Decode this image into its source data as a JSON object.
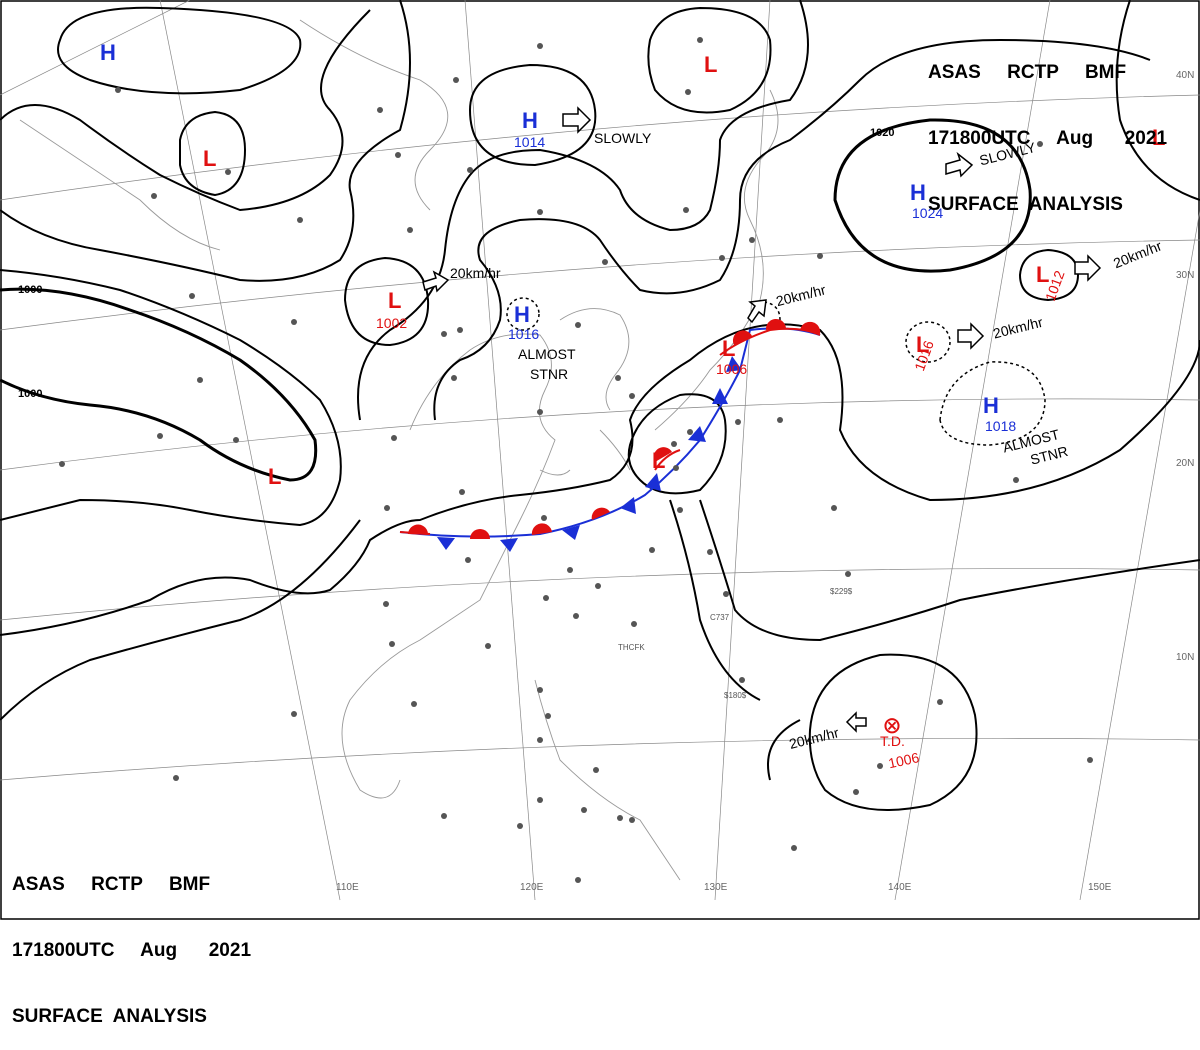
{
  "header": {
    "line1": "ASAS     RCTP     BMF",
    "line2": "171800UTC     Aug      2021",
    "line3": "SURFACE  ANALYSIS"
  },
  "isobar_labels": [
    "1000",
    "1000",
    "1020"
  ],
  "pressure_systems": [
    {
      "id": "h-nw",
      "type": "H",
      "value": ""
    },
    {
      "id": "h-1014",
      "type": "H",
      "value": "1014"
    },
    {
      "id": "h-1016",
      "type": "H",
      "value": "1016"
    },
    {
      "id": "h-1024",
      "type": "H",
      "value": "1024"
    },
    {
      "id": "h-1018",
      "type": "H",
      "value": "1018"
    },
    {
      "id": "l-west",
      "type": "L",
      "value": ""
    },
    {
      "id": "l-1002",
      "type": "L",
      "value": "1002"
    },
    {
      "id": "l-north",
      "type": "L",
      "value": ""
    },
    {
      "id": "l-1006",
      "type": "L",
      "value": "1006"
    },
    {
      "id": "l-1016",
      "type": "L",
      "value": "1016"
    },
    {
      "id": "l-1012",
      "type": "L",
      "value": "1012"
    },
    {
      "id": "l-ne",
      "type": "L",
      "value": ""
    },
    {
      "id": "l-sw",
      "type": "L",
      "value": ""
    },
    {
      "id": "l-tw",
      "type": "L",
      "value": ""
    }
  ],
  "motions": {
    "slowly_1": "SLOWLY",
    "slowly_2": "SLOWLY",
    "speed_1": "20km/hr",
    "speed_2": "20km/hr",
    "speed_3": "20km/hr",
    "speed_4": "20km/hr",
    "speed_5": "20km/hr",
    "almost_1": "ALMOST",
    "stnr_1": "STNR",
    "almost_2": "ALMOST",
    "stnr_2": "STNR"
  },
  "tropical_depression": {
    "label": "T.D.",
    "value": "1006"
  },
  "longitude_labels": [
    "110E",
    "120E",
    "130E",
    "140E",
    "150E"
  ],
  "latitude_labels": [
    "40N",
    "30N",
    "20N",
    "10N"
  ],
  "station_labels": [
    "THCFK",
    "C737",
    "$229$",
    "$180$"
  ]
}
